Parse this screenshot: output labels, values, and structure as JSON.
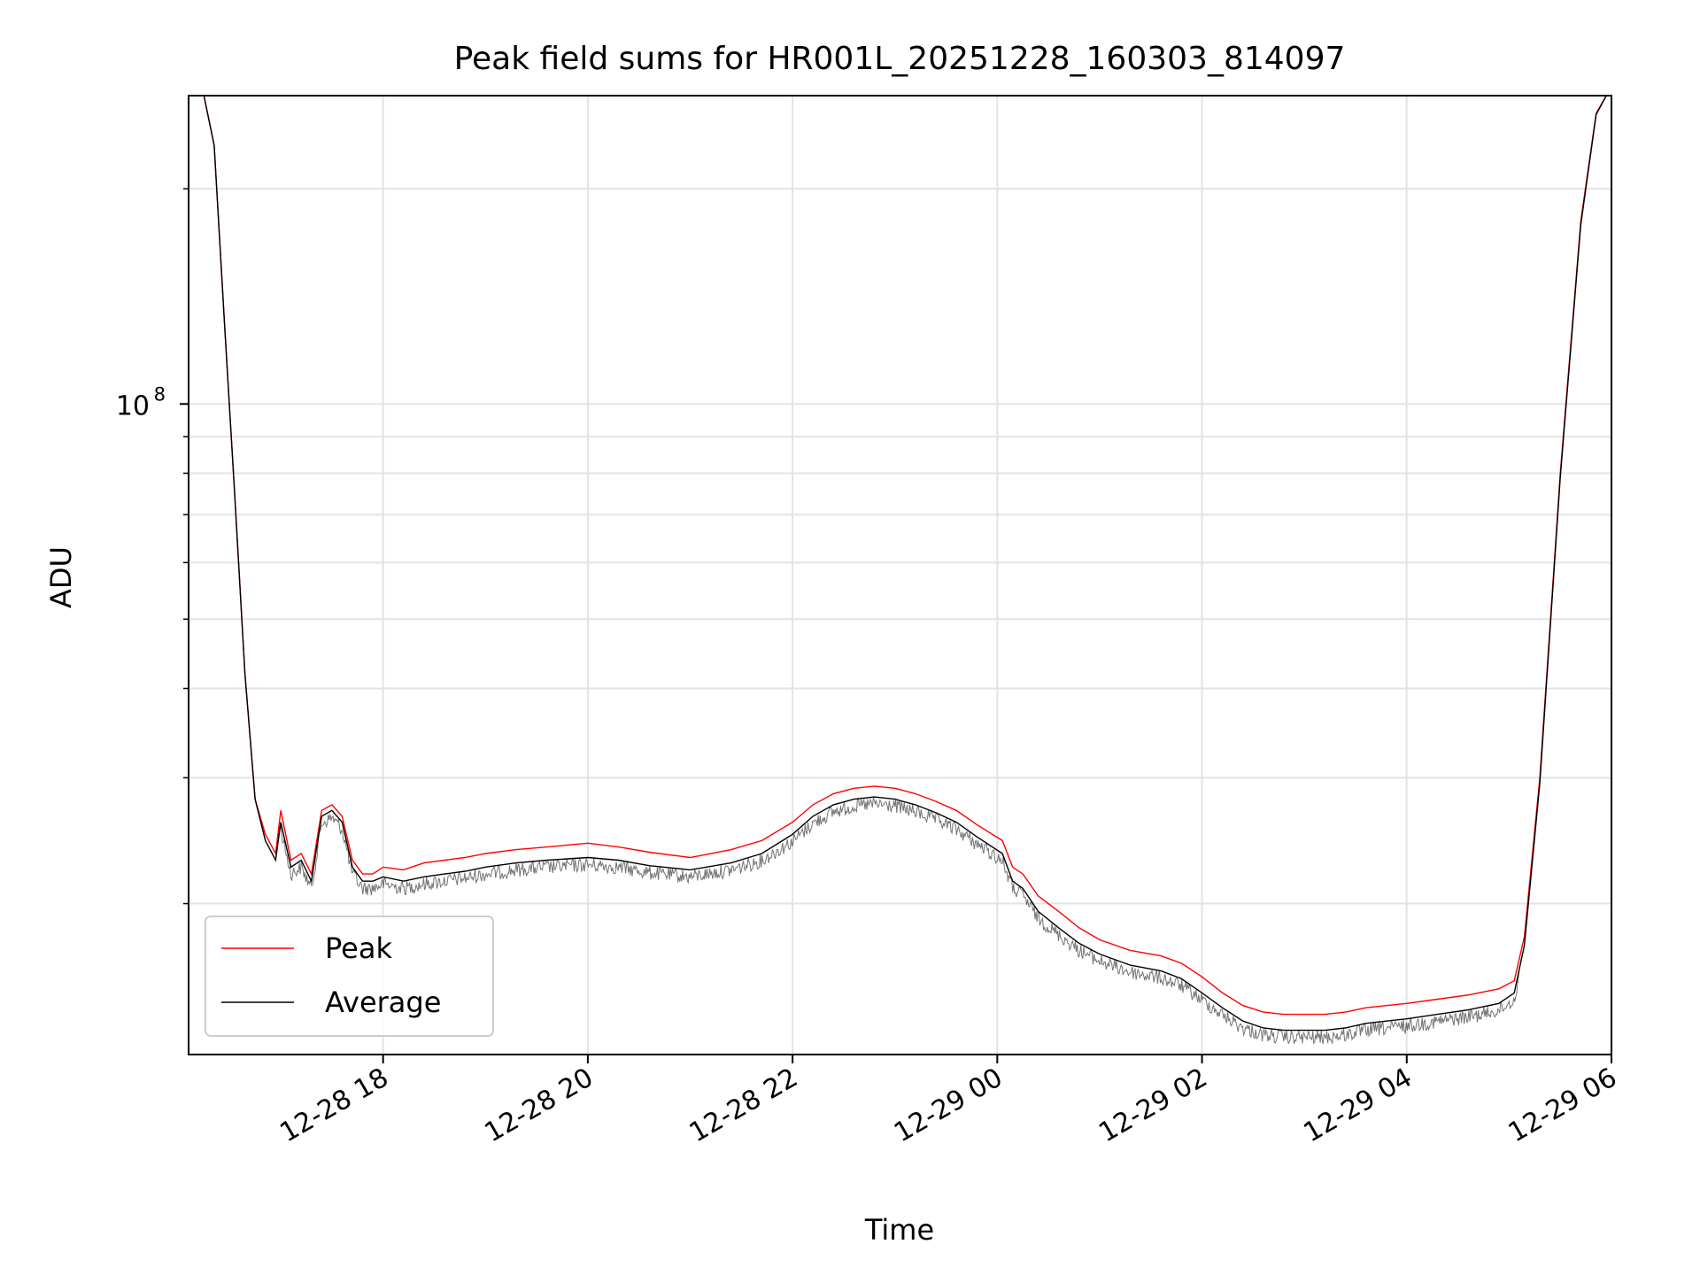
{
  "chart_data": {
    "type": "line",
    "title": "Peak field sums for HR001L_20251228_160303_814097",
    "xlabel": "Time",
    "ylabel": "ADU",
    "y_scale": "log",
    "x_unit": "hours since 2025-12-28 00:00",
    "xlim": [
      16.1,
      30.0
    ],
    "ylim": [
      12300000,
      270000000
    ],
    "x_ticks": [
      {
        "value": 18,
        "label": "12-28 18"
      },
      {
        "value": 20,
        "label": "12-28 20"
      },
      {
        "value": 22,
        "label": "12-28 22"
      },
      {
        "value": 24,
        "label": "12-29 00"
      },
      {
        "value": 26,
        "label": "12-29 02"
      },
      {
        "value": 28,
        "label": "12-29 04"
      },
      {
        "value": 30,
        "label": "12-29 06"
      }
    ],
    "y_ticks": [
      {
        "value": 100000000,
        "base": "10",
        "exp": "8"
      }
    ],
    "y_minor_ticks": [
      20000000,
      30000000,
      40000000,
      50000000,
      60000000,
      70000000,
      80000000,
      90000000,
      200000000
    ],
    "grid": true,
    "legend": {
      "position": "lower-left"
    },
    "series": [
      {
        "name": "Peak",
        "color": "#ff0000",
        "x": [
          16.25,
          16.35,
          16.45,
          16.55,
          16.65,
          16.75,
          16.85,
          16.95,
          17.0,
          17.1,
          17.2,
          17.3,
          17.4,
          17.5,
          17.6,
          17.7,
          17.8,
          17.9,
          18.0,
          18.2,
          18.4,
          18.6,
          18.8,
          19.0,
          19.3,
          19.6,
          20.0,
          20.3,
          20.6,
          21.0,
          21.4,
          21.7,
          22.0,
          22.2,
          22.4,
          22.6,
          22.8,
          23.0,
          23.2,
          23.4,
          23.6,
          23.8,
          24.05,
          24.15,
          24.25,
          24.4,
          24.6,
          24.8,
          25.0,
          25.3,
          25.6,
          25.8,
          26.0,
          26.2,
          26.4,
          26.6,
          26.8,
          27.0,
          27.2,
          27.4,
          27.6,
          27.8,
          28.0,
          28.3,
          28.6,
          28.9,
          29.05,
          29.15,
          29.3,
          29.5,
          29.7,
          29.85,
          29.95
        ],
        "values": [
          270000000,
          230000000,
          130000000,
          75000000,
          42000000,
          28000000,
          25000000,
          23500000,
          27000000,
          23000000,
          23500000,
          22000000,
          27000000,
          27500000,
          26500000,
          23000000,
          22000000,
          22000000,
          22500000,
          22300000,
          22800000,
          23000000,
          23200000,
          23500000,
          23800000,
          24000000,
          24300000,
          24000000,
          23600000,
          23200000,
          23800000,
          24500000,
          26000000,
          27500000,
          28500000,
          29000000,
          29200000,
          29000000,
          28500000,
          27800000,
          27000000,
          25800000,
          24500000,
          22500000,
          22000000,
          20500000,
          19500000,
          18500000,
          17800000,
          17200000,
          16900000,
          16500000,
          15800000,
          15000000,
          14400000,
          14100000,
          14000000,
          14000000,
          14000000,
          14100000,
          14300000,
          14400000,
          14500000,
          14700000,
          14900000,
          15200000,
          15600000,
          18000000,
          30000000,
          80000000,
          180000000,
          255000000,
          270000000
        ]
      },
      {
        "name": "Average",
        "color": "#000000",
        "x": [
          16.25,
          16.35,
          16.45,
          16.55,
          16.65,
          16.75,
          16.85,
          16.95,
          17.0,
          17.1,
          17.2,
          17.3,
          17.4,
          17.5,
          17.6,
          17.7,
          17.8,
          17.9,
          18.0,
          18.2,
          18.4,
          18.6,
          18.8,
          19.0,
          19.3,
          19.6,
          20.0,
          20.3,
          20.6,
          21.0,
          21.4,
          21.7,
          22.0,
          22.2,
          22.4,
          22.6,
          22.8,
          23.0,
          23.2,
          23.4,
          23.6,
          23.8,
          24.05,
          24.15,
          24.25,
          24.4,
          24.6,
          24.8,
          25.0,
          25.3,
          25.6,
          25.8,
          26.0,
          26.2,
          26.4,
          26.6,
          26.8,
          27.0,
          27.2,
          27.4,
          27.6,
          27.8,
          28.0,
          28.3,
          28.6,
          28.9,
          29.05,
          29.15,
          29.3,
          29.5,
          29.7,
          29.85,
          29.95
        ],
        "values": [
          270000000,
          230000000,
          130000000,
          75000000,
          42000000,
          28000000,
          24500000,
          23000000,
          26000000,
          22500000,
          23000000,
          21500000,
          26500000,
          27000000,
          26000000,
          22500000,
          21500000,
          21500000,
          21800000,
          21500000,
          21800000,
          22000000,
          22200000,
          22500000,
          22800000,
          23000000,
          23200000,
          23000000,
          22600000,
          22300000,
          22800000,
          23500000,
          25000000,
          26500000,
          27500000,
          28000000,
          28200000,
          28000000,
          27500000,
          26800000,
          26000000,
          24800000,
          23500000,
          21500000,
          21000000,
          19500000,
          18500000,
          17600000,
          17000000,
          16400000,
          16100000,
          15700000,
          15000000,
          14300000,
          13700000,
          13400000,
          13300000,
          13300000,
          13300000,
          13400000,
          13600000,
          13700000,
          13800000,
          14000000,
          14200000,
          14500000,
          15000000,
          17500000,
          29500000,
          79000000,
          178000000,
          254000000,
          270000000
        ]
      }
    ]
  }
}
